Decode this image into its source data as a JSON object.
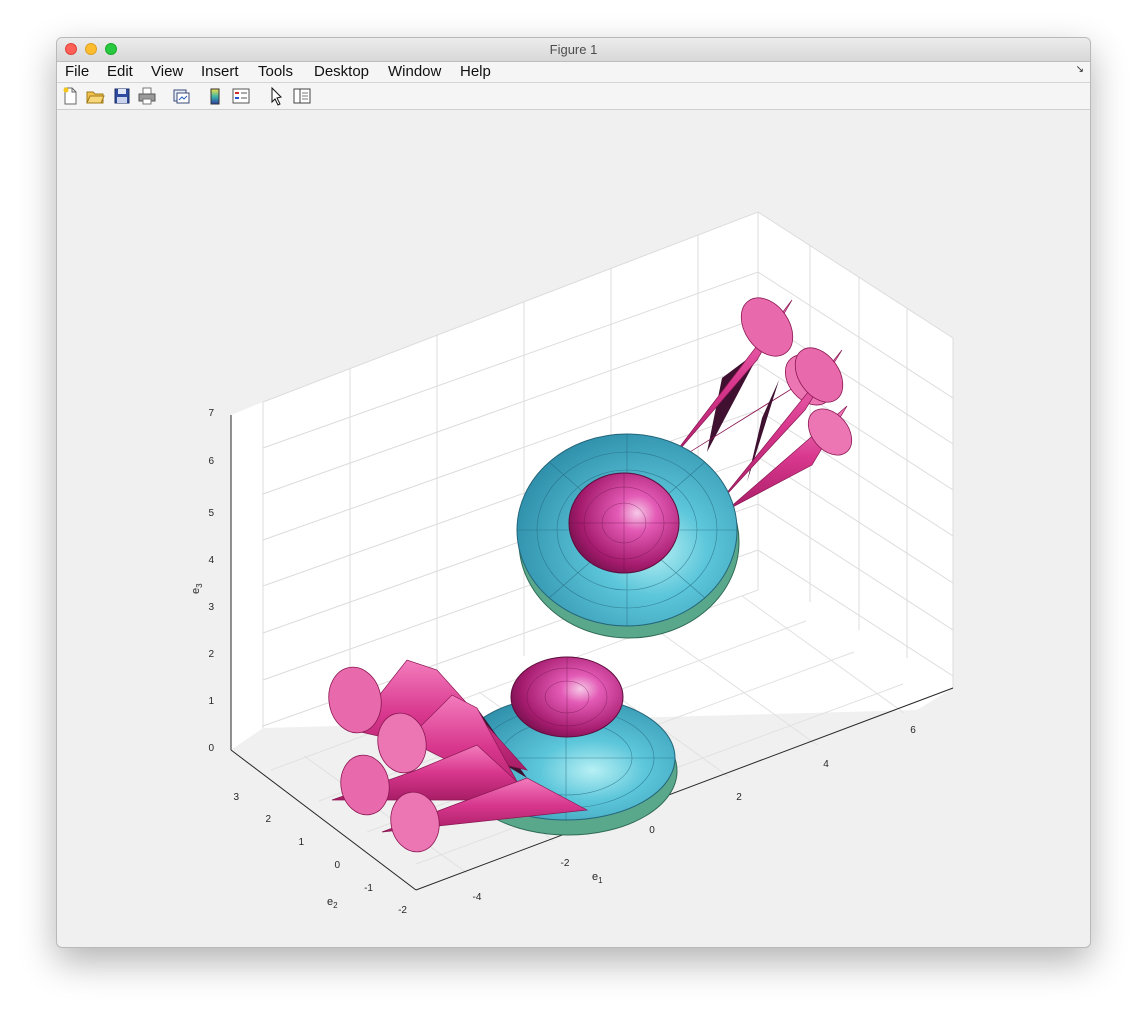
{
  "window": {
    "title": "Figure 1"
  },
  "menubar": {
    "items": [
      "File",
      "Edit",
      "View",
      "Insert",
      "Tools",
      "Desktop",
      "Window",
      "Help"
    ]
  },
  "toolbar": {
    "buttons": [
      "new-figure-icon",
      "open-icon",
      "save-icon",
      "print-icon",
      "link-plot-icon",
      "colorbar-icon",
      "legend-icon",
      "pointer-icon",
      "property-editor-icon"
    ]
  },
  "colors": {
    "window_bg": "#f0f0f0",
    "disk_teal": "#3aa3bd",
    "disk_underside": "#68c49a",
    "sphere_magenta": "#c8237f",
    "cone_pink": "#e0479a",
    "connector_dark": "#4a1236",
    "grid": "#dcdcdc"
  },
  "chart_data": {
    "type": "3d-surface",
    "axes": {
      "xlabel": "e",
      "xlabel_sub": "1",
      "ylabel": "e",
      "ylabel_sub": "2",
      "zlabel": "e",
      "zlabel_sub": "3"
    },
    "xlim": [
      -5,
      7
    ],
    "ylim": [
      -2,
      4
    ],
    "zlim": [
      0,
      7
    ],
    "x_ticks": [
      "-4",
      "-2",
      "0",
      "2",
      "4",
      "6"
    ],
    "y_ticks": [
      "-2",
      "-1",
      "0",
      "1",
      "2",
      "3"
    ],
    "z_ticks": [
      "0",
      "1",
      "2",
      "3",
      "4",
      "5",
      "6",
      "7"
    ],
    "grid": true,
    "objects": [
      {
        "name": "upper-assembly",
        "parts": [
          "disk",
          "hemisphere",
          "cone-pair",
          "cone-pair"
        ]
      },
      {
        "name": "lower-assembly",
        "parts": [
          "disk",
          "hemisphere",
          "cone-pair",
          "cone-pair"
        ]
      }
    ]
  }
}
